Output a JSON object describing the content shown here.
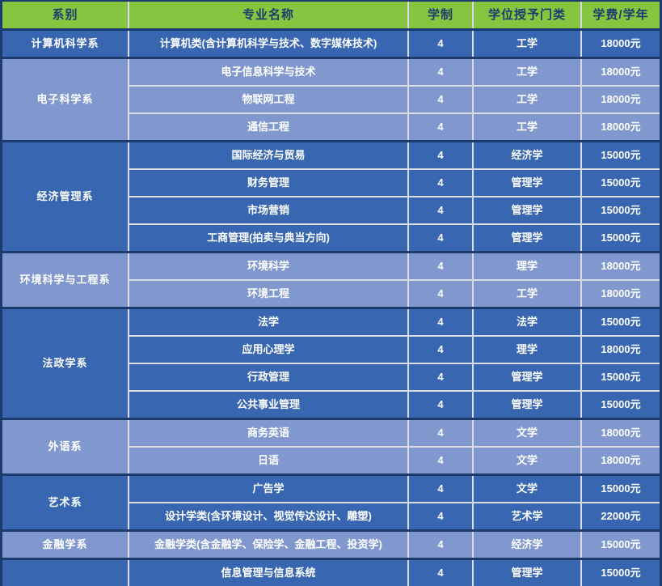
{
  "colors": {
    "header_green": "#86c540",
    "header_text_navy": "#1e3b6d",
    "row_dark_blue": "#3866b0",
    "row_light_blue": "#8098cd",
    "background_navy": "#1b3a6d",
    "grid_border_gray": "#d9dde3",
    "body_text": "#ffffff"
  },
  "chart_data": {
    "type": "table",
    "columns": [
      "系别",
      "专业名称",
      "学制",
      "学位授予门类",
      "学费/学年"
    ],
    "sections": [
      {
        "department": "计算机科学系",
        "tone": "dark",
        "majors": [
          {
            "name": "计算机类(含计算机科学与技术、数字媒体技术)",
            "years": "4",
            "degree": "工学",
            "fee": "18000元"
          }
        ]
      },
      {
        "department": "电子科学系",
        "tone": "light",
        "majors": [
          {
            "name": "电子信息科学与技术",
            "years": "4",
            "degree": "工学",
            "fee": "18000元"
          },
          {
            "name": "物联网工程",
            "years": "4",
            "degree": "工学",
            "fee": "18000元"
          },
          {
            "name": "通信工程",
            "years": "4",
            "degree": "工学",
            "fee": "18000元"
          }
        ]
      },
      {
        "department": "经济管理系",
        "tone": "dark",
        "majors": [
          {
            "name": "国际经济与贸易",
            "years": "4",
            "degree": "经济学",
            "fee": "15000元"
          },
          {
            "name": "财务管理",
            "years": "4",
            "degree": "管理学",
            "fee": "15000元"
          },
          {
            "name": "市场营销",
            "years": "4",
            "degree": "管理学",
            "fee": "15000元"
          },
          {
            "name": "工商管理(拍卖与典当方向)",
            "years": "4",
            "degree": "管理学",
            "fee": "15000元"
          }
        ]
      },
      {
        "department": "环境科学与工程系",
        "tone": "light",
        "majors": [
          {
            "name": "环境科学",
            "years": "4",
            "degree": "理学",
            "fee": "18000元"
          },
          {
            "name": "环境工程",
            "years": "4",
            "degree": "工学",
            "fee": "18000元"
          }
        ]
      },
      {
        "department": "法政学系",
        "tone": "dark",
        "majors": [
          {
            "name": "法学",
            "years": "4",
            "degree": "法学",
            "fee": "15000元"
          },
          {
            "name": "应用心理学",
            "years": "4",
            "degree": "理学",
            "fee": "18000元"
          },
          {
            "name": "行政管理",
            "years": "4",
            "degree": "管理学",
            "fee": "15000元"
          },
          {
            "name": "公共事业管理",
            "years": "4",
            "degree": "管理学",
            "fee": "15000元"
          }
        ]
      },
      {
        "department": "外语系",
        "tone": "light",
        "majors": [
          {
            "name": "商务英语",
            "years": "4",
            "degree": "文学",
            "fee": "18000元"
          },
          {
            "name": "日语",
            "years": "4",
            "degree": "文学",
            "fee": "18000元"
          }
        ]
      },
      {
        "department": "艺术系",
        "tone": "dark",
        "majors": [
          {
            "name": "广告学",
            "years": "4",
            "degree": "文学",
            "fee": "15000元"
          },
          {
            "name": "设计学类(含环境设计、视觉传达设计、雕塑)",
            "years": "4",
            "degree": "艺术学",
            "fee": "22000元"
          }
        ]
      },
      {
        "department": "金融学系",
        "tone": "light",
        "majors": [
          {
            "name": "金融学类(含金融学、保险学、金融工程、投资学)",
            "years": "4",
            "degree": "经济学",
            "fee": "15000元"
          }
        ]
      },
      {
        "department": "",
        "tone": "dark",
        "majors": [
          {
            "name": "信息管理与信息系统",
            "years": "4",
            "degree": "管理学",
            "fee": "15000元"
          }
        ]
      }
    ]
  }
}
